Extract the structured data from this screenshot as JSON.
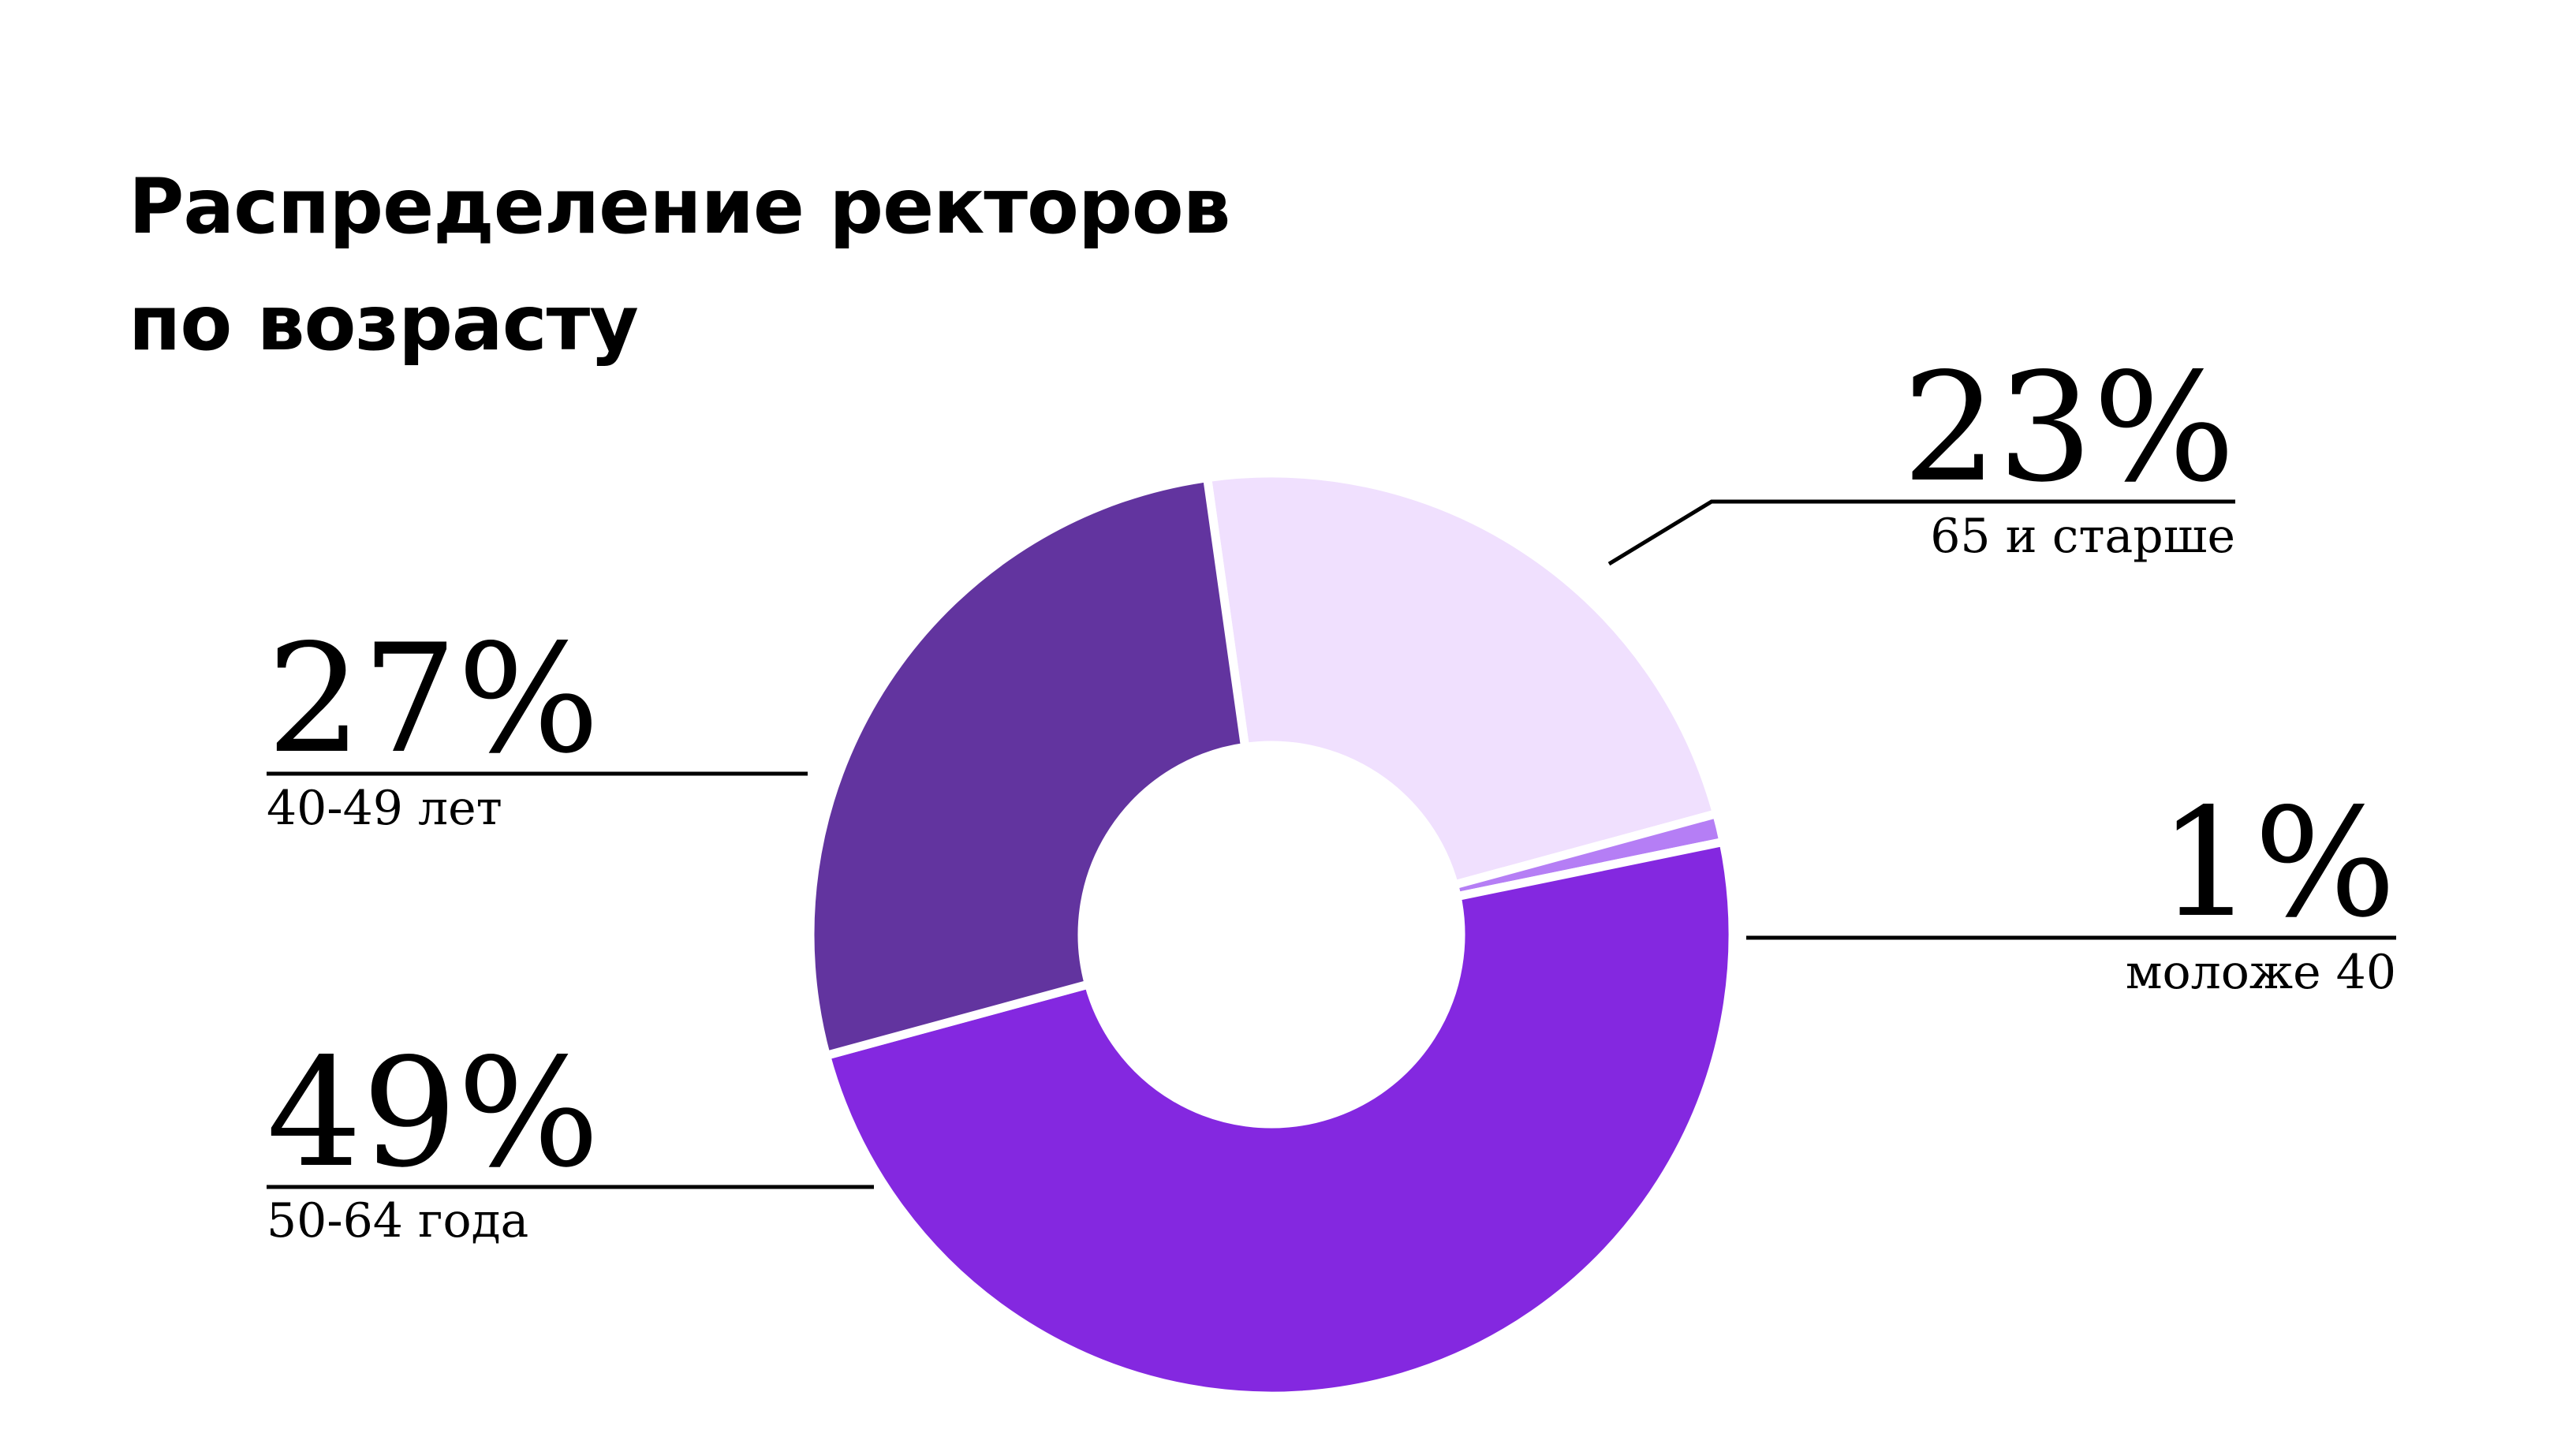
{
  "chart_data": {
    "type": "pie",
    "title_lines": [
      "Распределение ректоров",
      "по возрасту"
    ],
    "categories": [
      "65 и старше",
      "моложе 40",
      "50-64 года",
      "40-49 лет"
    ],
    "values": [
      23,
      1,
      49,
      27
    ],
    "value_labels": [
      "23%",
      "1%",
      "49%",
      "27%"
    ],
    "colors": [
      "#F0E0FE",
      "#B57EF5",
      "#8428E0",
      "#62349F"
    ],
    "donut": true
  }
}
